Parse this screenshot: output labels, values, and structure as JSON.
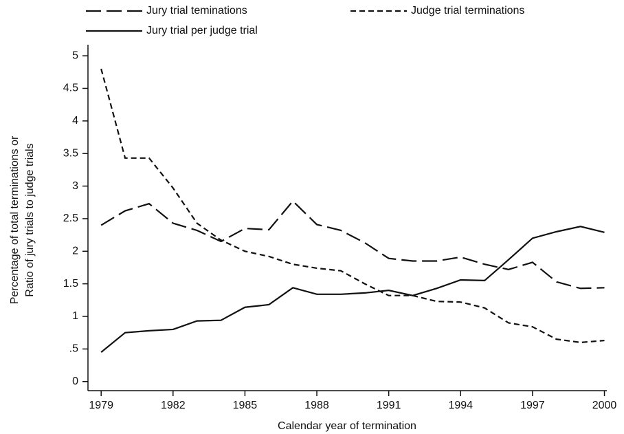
{
  "chart_data": {
    "type": "line",
    "x_label": "Calendar year of termination",
    "y_label": [
      "Percentage of total terminations or",
      "Ratio of jury trials to judge trials"
    ],
    "x": [
      1979,
      1980,
      1981,
      1982,
      1983,
      1984,
      1985,
      1986,
      1987,
      1988,
      1989,
      1990,
      1991,
      1992,
      1993,
      1994,
      1995,
      1996,
      1997,
      1998,
      1999,
      2000
    ],
    "series": [
      {
        "name": "Jury trial teminations",
        "color": "#111111",
        "dash": "long",
        "values": [
          2.4,
          2.62,
          2.73,
          2.43,
          2.32,
          2.15,
          2.35,
          2.33,
          2.77,
          2.41,
          2.32,
          2.13,
          1.89,
          1.85,
          1.85,
          1.91,
          1.8,
          1.72,
          1.83,
          1.53,
          1.43,
          1.44
        ]
      },
      {
        "name": "Judge trial terminations",
        "color": "#111111",
        "dash": "short",
        "values": [
          4.8,
          3.43,
          3.43,
          2.97,
          2.43,
          2.17,
          2.0,
          1.92,
          1.8,
          1.74,
          1.7,
          1.5,
          1.32,
          1.32,
          1.23,
          1.22,
          1.13,
          0.9,
          0.84,
          0.65,
          0.6,
          0.63
        ]
      },
      {
        "name": "Jury trial per judge trial",
        "color": "#111111",
        "dash": "solid",
        "values": [
          0.45,
          0.75,
          0.78,
          0.8,
          0.93,
          0.94,
          1.14,
          1.18,
          1.44,
          1.34,
          1.34,
          1.36,
          1.4,
          1.32,
          1.43,
          1.56,
          1.55,
          1.87,
          2.2,
          2.3,
          2.38,
          2.29
        ]
      }
    ],
    "xlim": [
      1978.45,
      2000.1
    ],
    "xticks": [
      1979,
      1982,
      1985,
      1988,
      1991,
      1994,
      1997,
      2000
    ],
    "ylim": [
      -0.14,
      5.17
    ],
    "yticks": [
      0,
      {
        "value": 0.5,
        "label": ".5"
      },
      1,
      1.5,
      2,
      2.5,
      3,
      3.5,
      4,
      4.5,
      5
    ],
    "legend": "top"
  }
}
